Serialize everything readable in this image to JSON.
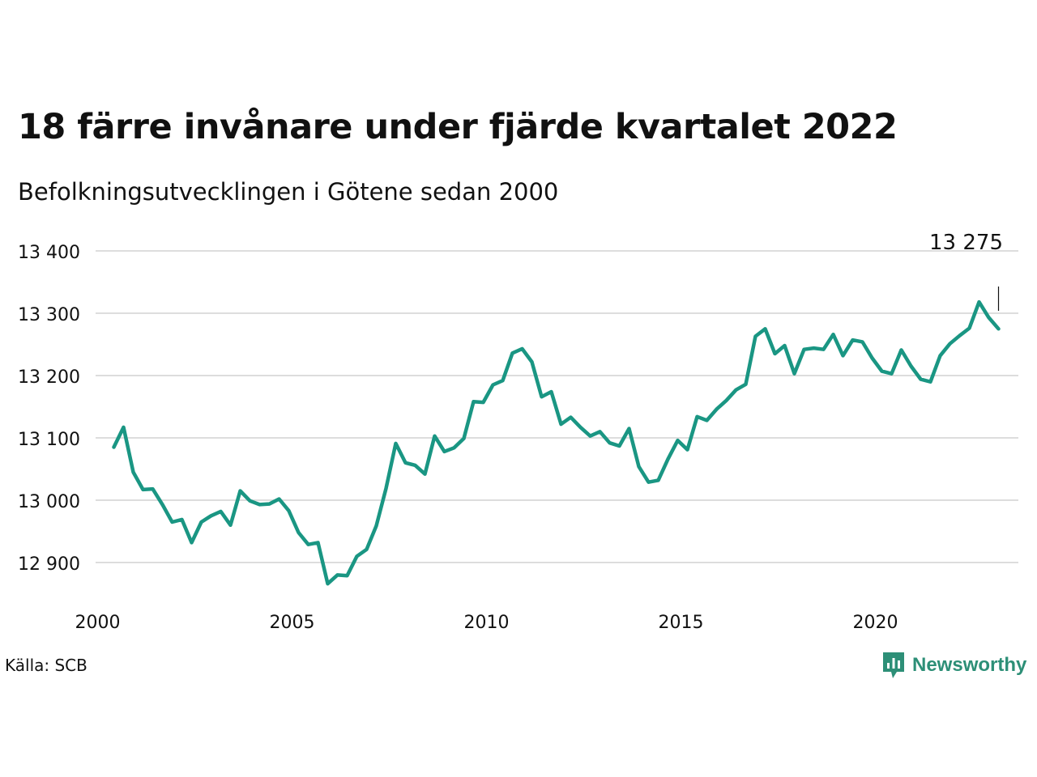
{
  "title": "18 färre invånare under fjärde kvartalet 2022",
  "subtitle": "Befolkningsutvecklingen i Götene sedan 2000",
  "source": "Källa: SCB",
  "brand": "Newsworthy",
  "colors": {
    "line": "#1a9683",
    "grid": "#dddddd",
    "brand": "#2d8f77"
  },
  "chart_data": {
    "type": "line",
    "title": "18 färre invånare under fjärde kvartalet 2022",
    "subtitle": "Befolkningsutvecklingen i Götene sedan 2000",
    "xlabel": "",
    "ylabel": "",
    "xlim": [
      2000,
      2023.25
    ],
    "ylim": [
      12880,
      13400
    ],
    "x_ticks": [
      2000,
      2005,
      2010,
      2015,
      2020
    ],
    "x_tick_labels": [
      "2000",
      "2005",
      "2010",
      "2015",
      "2020"
    ],
    "y_ticks": [
      12900,
      13000,
      13100,
      13200,
      13300,
      13400
    ],
    "y_tick_labels": [
      "12 900",
      "13 000",
      "13 100",
      "13 200",
      "13 300",
      "13 400"
    ],
    "grid": true,
    "last_value_label": "13 275",
    "series": [
      {
        "x": [
          2000.25,
          2000.5,
          2000.75,
          2001.0,
          2001.25,
          2001.5,
          2001.75,
          2002.0,
          2002.25,
          2002.5,
          2002.75,
          2003.0,
          2003.25,
          2003.5,
          2003.75,
          2004.0,
          2004.25,
          2004.5,
          2004.75,
          2005.0,
          2005.25,
          2005.5,
          2005.75,
          2006.0,
          2006.25,
          2006.5,
          2006.75,
          2007.0,
          2007.25,
          2007.5,
          2007.75,
          2008.0,
          2008.25,
          2008.5,
          2008.75,
          2009.0,
          2009.25,
          2009.5,
          2009.75,
          2010.0,
          2010.25,
          2010.5,
          2010.75,
          2011.0,
          2011.25,
          2011.5,
          2011.75,
          2012.0,
          2012.25,
          2012.5,
          2012.75,
          2013.0,
          2013.25,
          2013.5,
          2013.75,
          2014.0,
          2014.25,
          2014.5,
          2014.75,
          2015.0,
          2015.25,
          2015.5,
          2015.75,
          2016.0,
          2016.25,
          2016.5,
          2016.75,
          2017.0,
          2017.25,
          2017.5,
          2017.75,
          2018.0,
          2018.25,
          2018.5,
          2018.75,
          2019.0,
          2019.25,
          2019.5,
          2019.75,
          2020.0,
          2020.25,
          2020.5,
          2020.75,
          2021.0,
          2021.25,
          2021.5,
          2021.75,
          2022.0,
          2022.25,
          2022.5,
          2022.75,
          2023.0
        ],
        "values": [
          13085,
          13117,
          13045,
          13017,
          13018,
          12993,
          12965,
          12969,
          12932,
          12965,
          12975,
          12982,
          12960,
          13015,
          12999,
          12993,
          12994,
          13002,
          12983,
          12948,
          12929,
          12932,
          12866,
          12880,
          12879,
          12910,
          12921,
          12959,
          13019,
          13091,
          13060,
          13056,
          13042,
          13103,
          13078,
          13084,
          13099,
          13158,
          13157,
          13185,
          13192,
          13236,
          13243,
          13222,
          13166,
          13174,
          13122,
          13133,
          13117,
          13103,
          13110,
          13092,
          13087,
          13115,
          13054,
          13029,
          13032,
          13066,
          13096,
          13081,
          13134,
          13128,
          13146,
          13160,
          13177,
          13186,
          13263,
          13275,
          13235,
          13248,
          13203,
          13242,
          13244,
          13242,
          13266,
          13232,
          13257,
          13254,
          13228,
          13207,
          13203,
          13241,
          13215,
          13194,
          13190,
          13232,
          13251,
          13264,
          13276,
          13318,
          13293,
          13275
        ]
      }
    ]
  }
}
